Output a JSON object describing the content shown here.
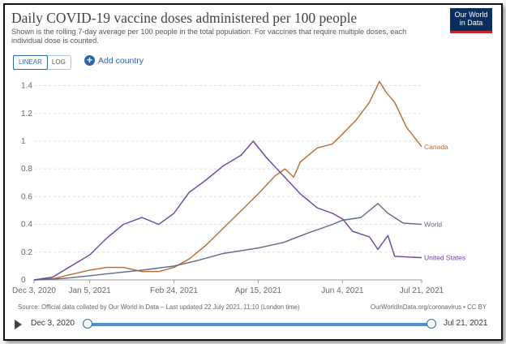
{
  "title": "Daily COVID-19 vaccine doses administered per 100 people",
  "subtitle": "Shown is the rolling 7-day average per 100 people in the total population. For vaccines that require multiple doses, each individual dose is counted.",
  "logo": {
    "line1": "Our World",
    "line2": "in Data"
  },
  "controls": {
    "linear_label": "LINEAR",
    "log_label": "LOG",
    "add_country_label": "Add country",
    "add_icon": "+"
  },
  "source": "Source: Official data collated by Our World in Data – Last updated 22 July 2021, 11:10 (London time)",
  "credit": "OurWorldInData.org/coronavirus • CC BY",
  "timeline": {
    "start": "Dec 3, 2020",
    "end": "Jul 21, 2021"
  },
  "colors": {
    "canada": "#b86a2e",
    "world": "#5a6a8a",
    "united_states": "#6a3fa0",
    "grid": "#dddddd",
    "axis_text": "#666666"
  },
  "chart_data": {
    "type": "line",
    "x_ticks": [
      "Dec 3, 2020",
      "Jan 5, 2021",
      "Feb 24, 2021",
      "Apr 15, 2021",
      "Jun 4, 2021",
      "Jul 21, 2021"
    ],
    "y_ticks": [
      "0",
      "0.2",
      "0.4",
      "0.6",
      "0.8",
      "1",
      "1.2",
      "1.4"
    ],
    "ylim": [
      0,
      1.45
    ],
    "xlim": [
      "2020-12-03",
      "2021-07-21"
    ],
    "series": [
      {
        "name": "Canada",
        "key": "canada",
        "points": [
          [
            "2020-12-03",
            0
          ],
          [
            "2020-12-15",
            0.01
          ],
          [
            "2020-12-25",
            0.04
          ],
          [
            "2021-01-05",
            0.07
          ],
          [
            "2021-01-15",
            0.09
          ],
          [
            "2021-01-25",
            0.09
          ],
          [
            "2021-02-05",
            0.06
          ],
          [
            "2021-02-15",
            0.06
          ],
          [
            "2021-02-24",
            0.09
          ],
          [
            "2021-03-05",
            0.15
          ],
          [
            "2021-03-15",
            0.25
          ],
          [
            "2021-03-25",
            0.37
          ],
          [
            "2021-04-05",
            0.5
          ],
          [
            "2021-04-15",
            0.62
          ],
          [
            "2021-04-25",
            0.75
          ],
          [
            "2021-05-01",
            0.8
          ],
          [
            "2021-05-06",
            0.74
          ],
          [
            "2021-05-10",
            0.85
          ],
          [
            "2021-05-20",
            0.95
          ],
          [
            "2021-05-29",
            0.98
          ],
          [
            "2021-06-04",
            1.05
          ],
          [
            "2021-06-12",
            1.15
          ],
          [
            "2021-06-20",
            1.28
          ],
          [
            "2021-06-26",
            1.43
          ],
          [
            "2021-06-30",
            1.35
          ],
          [
            "2021-07-05",
            1.28
          ],
          [
            "2021-07-12",
            1.1
          ],
          [
            "2021-07-21",
            0.96
          ]
        ]
      },
      {
        "name": "World",
        "key": "world",
        "points": [
          [
            "2020-12-03",
            0
          ],
          [
            "2020-12-20",
            0.01
          ],
          [
            "2021-01-05",
            0.03
          ],
          [
            "2021-01-20",
            0.05
          ],
          [
            "2021-02-05",
            0.07
          ],
          [
            "2021-02-24",
            0.1
          ],
          [
            "2021-03-10",
            0.14
          ],
          [
            "2021-03-25",
            0.19
          ],
          [
            "2021-04-15",
            0.23
          ],
          [
            "2021-04-30",
            0.27
          ],
          [
            "2021-05-15",
            0.34
          ],
          [
            "2021-05-29",
            0.4
          ],
          [
            "2021-06-04",
            0.43
          ],
          [
            "2021-06-15",
            0.45
          ],
          [
            "2021-06-25",
            0.55
          ],
          [
            "2021-07-01",
            0.48
          ],
          [
            "2021-07-10",
            0.41
          ],
          [
            "2021-07-21",
            0.4
          ]
        ]
      },
      {
        "name": "United States",
        "key": "united_states",
        "points": [
          [
            "2020-12-03",
            0
          ],
          [
            "2020-12-14",
            0.02
          ],
          [
            "2020-12-25",
            0.1
          ],
          [
            "2021-01-05",
            0.18
          ],
          [
            "2021-01-15",
            0.3
          ],
          [
            "2021-01-25",
            0.4
          ],
          [
            "2021-02-05",
            0.45
          ],
          [
            "2021-02-15",
            0.4
          ],
          [
            "2021-02-24",
            0.48
          ],
          [
            "2021-03-05",
            0.63
          ],
          [
            "2021-03-15",
            0.72
          ],
          [
            "2021-03-25",
            0.82
          ],
          [
            "2021-04-05",
            0.9
          ],
          [
            "2021-04-12",
            1.0
          ],
          [
            "2021-04-20",
            0.88
          ],
          [
            "2021-04-30",
            0.75
          ],
          [
            "2021-05-10",
            0.62
          ],
          [
            "2021-05-20",
            0.52
          ],
          [
            "2021-05-29",
            0.48
          ],
          [
            "2021-06-04",
            0.44
          ],
          [
            "2021-06-10",
            0.35
          ],
          [
            "2021-06-20",
            0.31
          ],
          [
            "2021-06-25",
            0.22
          ],
          [
            "2021-07-01",
            0.32
          ],
          [
            "2021-07-05",
            0.17
          ],
          [
            "2021-07-21",
            0.16
          ]
        ]
      }
    ]
  }
}
